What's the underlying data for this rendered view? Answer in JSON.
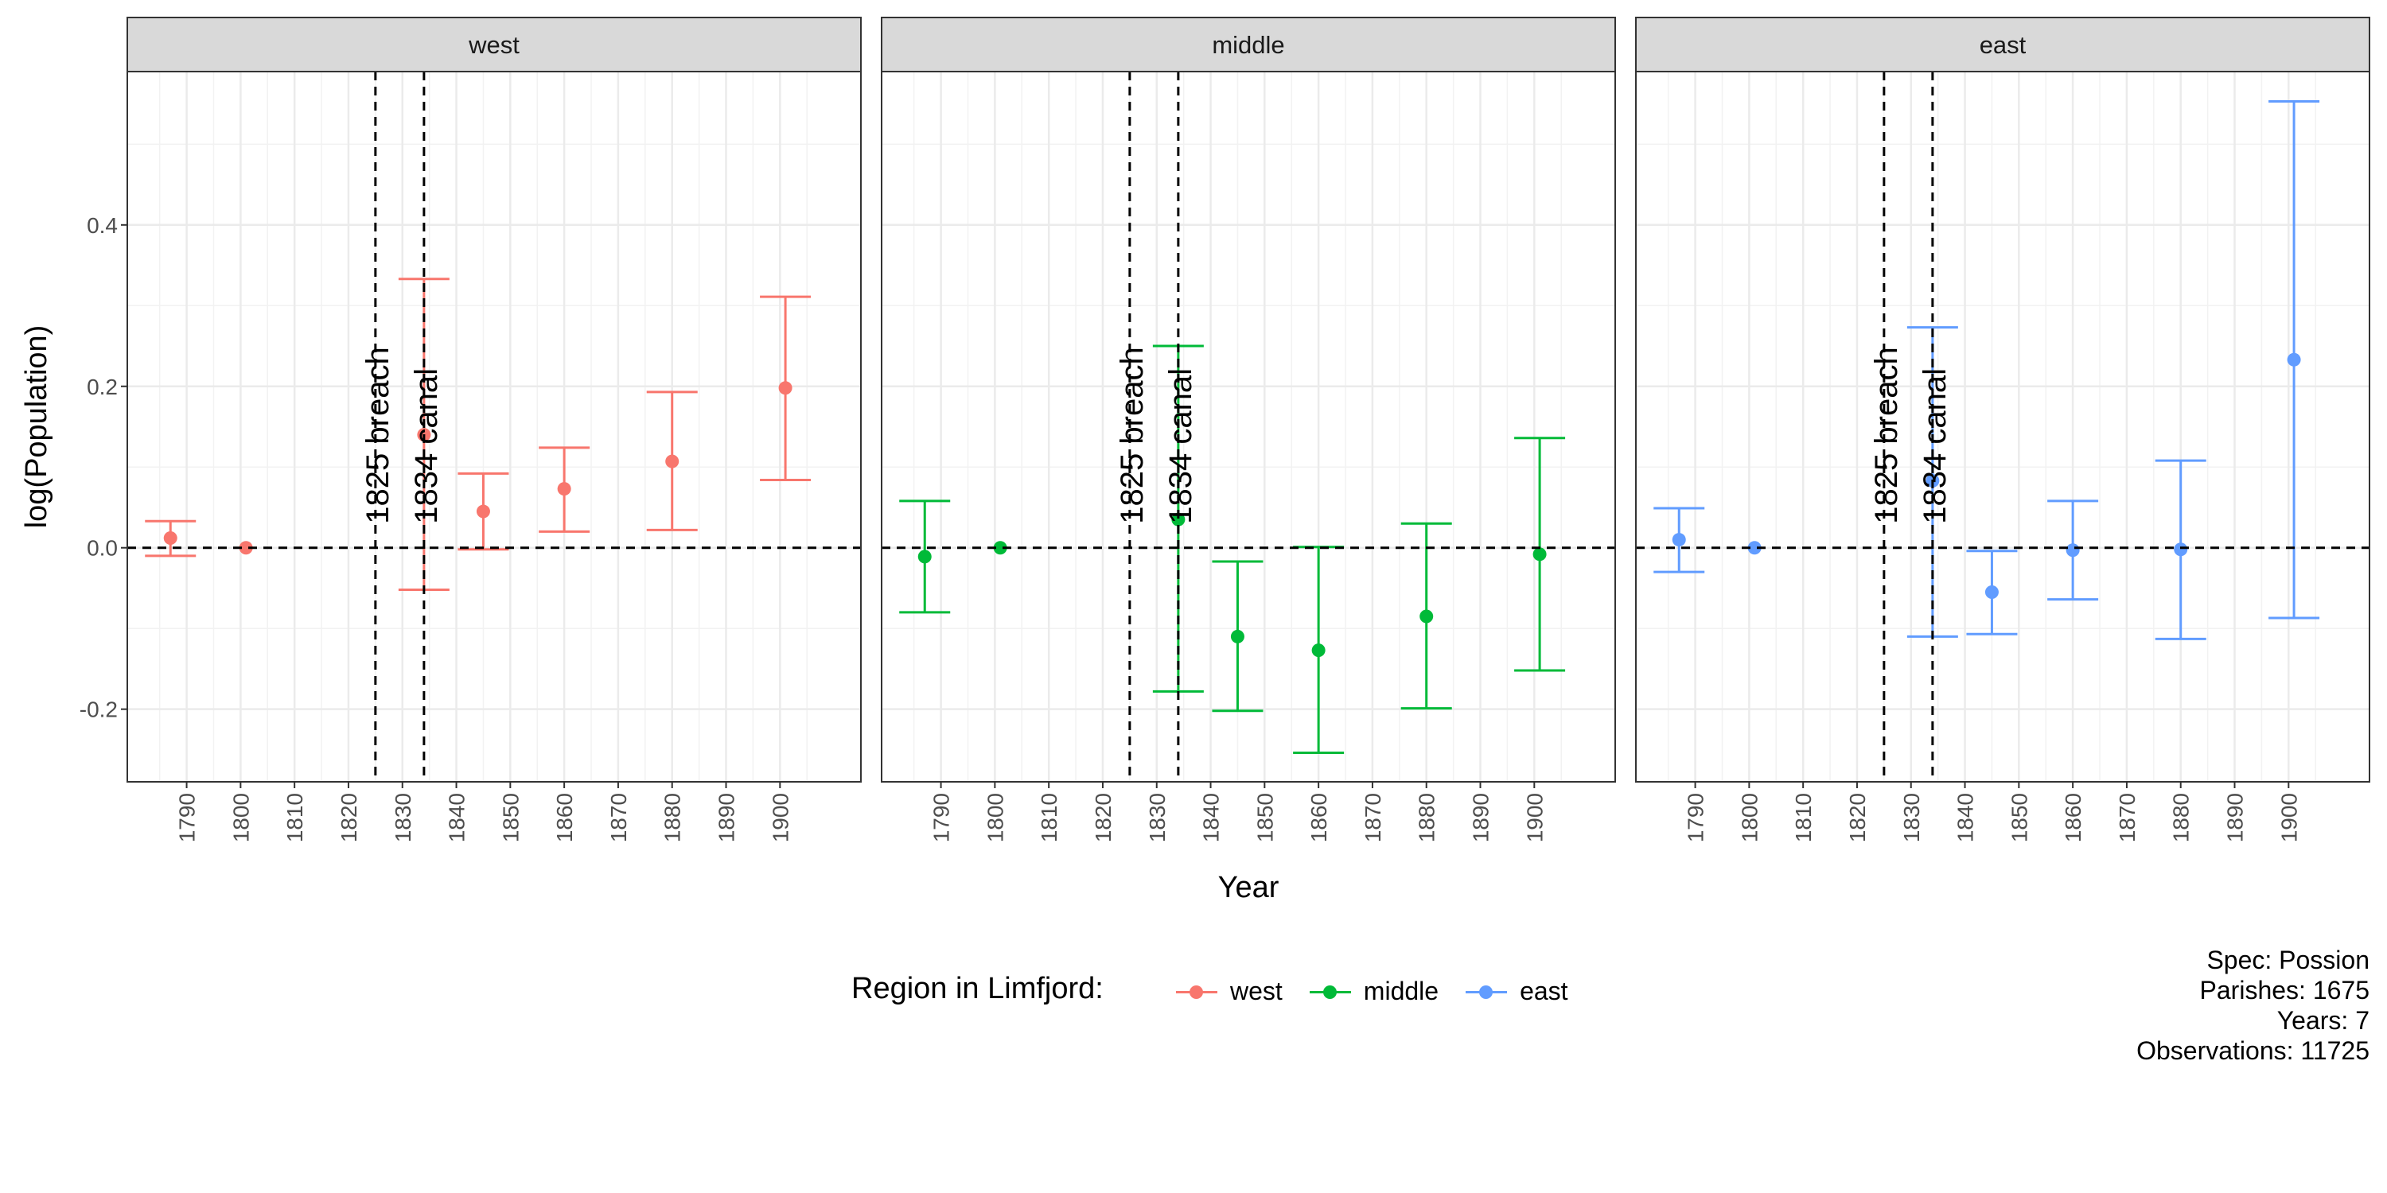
{
  "chart_data": {
    "type": "scatter",
    "subtype": "event-study with error bars, faceted",
    "title": "",
    "xlabel": "Year",
    "ylabel": "log(Population)",
    "xlim": [
      1779,
      1915
    ],
    "ylim": [
      -0.29,
      0.59
    ],
    "x_ticks": [
      "1790",
      "1800",
      "1810",
      "1820",
      "1830",
      "1840",
      "1850",
      "1860",
      "1870",
      "1880",
      "1890",
      "1900"
    ],
    "y_ticks": [
      "-0.2",
      "0.0",
      "0.2",
      "0.4"
    ],
    "y_tick_values": [
      -0.2,
      0.0,
      0.2,
      0.4
    ],
    "hline": 0,
    "vlines": [
      {
        "x": 1825,
        "label": "1825 breach"
      },
      {
        "x": 1834,
        "label": "1834 canal"
      }
    ],
    "grid": true,
    "legend_title": "Region in Limfjord:",
    "legend_position": "bottom",
    "facets": [
      {
        "label": "west",
        "color": "#F8766D",
        "points": [
          {
            "x": 1787,
            "y": 0.012,
            "lo": -0.01,
            "hi": 0.033
          },
          {
            "x": 1801,
            "y": 0.0
          },
          {
            "x": 1834,
            "y": 0.14,
            "lo": -0.052,
            "hi": 0.333
          },
          {
            "x": 1845,
            "y": 0.045,
            "lo": -0.002,
            "hi": 0.092
          },
          {
            "x": 1860,
            "y": 0.073,
            "lo": 0.02,
            "hi": 0.124
          },
          {
            "x": 1880,
            "y": 0.107,
            "lo": 0.022,
            "hi": 0.193
          },
          {
            "x": 1901,
            "y": 0.198,
            "lo": 0.084,
            "hi": 0.311
          }
        ]
      },
      {
        "label": "middle",
        "color": "#00BA38",
        "points": [
          {
            "x": 1787,
            "y": -0.011,
            "lo": -0.08,
            "hi": 0.058
          },
          {
            "x": 1801,
            "y": 0.0
          },
          {
            "x": 1834,
            "y": 0.035,
            "lo": -0.178,
            "hi": 0.25
          },
          {
            "x": 1845,
            "y": -0.11,
            "lo": -0.202,
            "hi": -0.017
          },
          {
            "x": 1860,
            "y": -0.127,
            "lo": -0.254,
            "hi": 0.001
          },
          {
            "x": 1880,
            "y": -0.085,
            "lo": -0.199,
            "hi": 0.03
          },
          {
            "x": 1901,
            "y": -0.008,
            "lo": -0.152,
            "hi": 0.136
          }
        ]
      },
      {
        "label": "east",
        "color": "#619CFF",
        "points": [
          {
            "x": 1787,
            "y": 0.01,
            "lo": -0.03,
            "hi": 0.049
          },
          {
            "x": 1801,
            "y": 0.0
          },
          {
            "x": 1834,
            "y": 0.083,
            "lo": -0.11,
            "hi": 0.273
          },
          {
            "x": 1845,
            "y": -0.055,
            "lo": -0.107,
            "hi": -0.004
          },
          {
            "x": 1860,
            "y": -0.003,
            "lo": -0.064,
            "hi": 0.058
          },
          {
            "x": 1880,
            "y": -0.002,
            "lo": -0.113,
            "hi": 0.108
          },
          {
            "x": 1901,
            "y": 0.233,
            "lo": -0.087,
            "hi": 0.553
          }
        ]
      }
    ]
  },
  "caption": {
    "spec": "Spec: Possion",
    "parishes": "Parishes: 1675",
    "years": "Years: 7",
    "observations": "Observations: 11725"
  }
}
